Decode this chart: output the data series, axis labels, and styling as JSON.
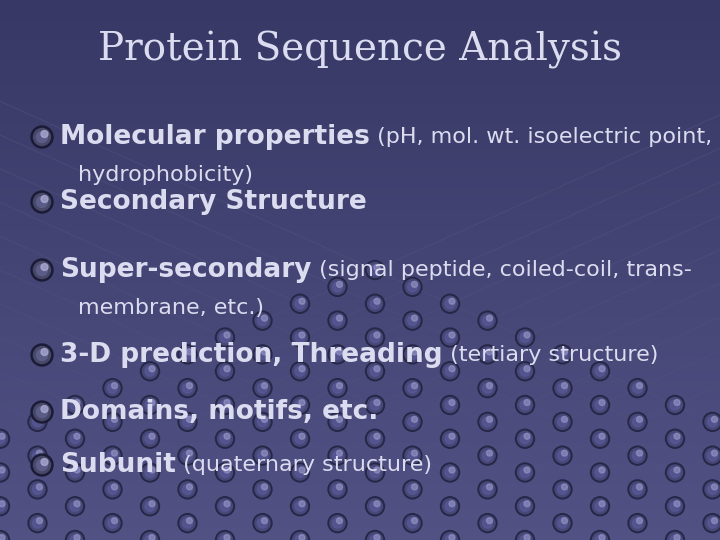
{
  "title": "Protein Sequence Analysis",
  "bg_color": "#5a5a8a",
  "bg_gradient_top": "#6868a0",
  "bg_gradient_bottom": "#38386a",
  "text_color": "#dcdcf0",
  "title_fontsize": 28,
  "bullet_main_fontsize": 19,
  "bullet_small_fontsize": 16,
  "bullets": [
    {
      "line1_bold": "Molecular properties",
      "line1_small": " (pH, mol. wt. isoelectric point,",
      "line2": "hydrophobicity)"
    },
    {
      "line1_bold": "Secondary Structure",
      "line1_small": "",
      "line2": ""
    },
    {
      "line1_bold": "Super-secondary",
      "line1_small": " (signal peptide, coiled-coil, trans-",
      "line2": "membrane, etc.)"
    },
    {
      "line1_bold": "3-D prediction, Threading",
      "line1_small": " (tertiary structure)",
      "line2": ""
    },
    {
      "line1_bold": "Domains, motifs, etc.",
      "line1_small": "",
      "line2": ""
    },
    {
      "line1_bold": "Subunit",
      "line1_small": " (quaternary structure)",
      "line2": ""
    }
  ],
  "lattice_line_color": "#50507a",
  "lattice_node_color": "#4a4a78",
  "lattice_node_highlight": "#7878a8"
}
